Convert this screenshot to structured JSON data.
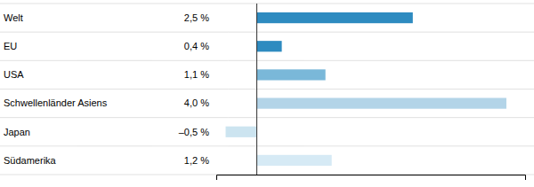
{
  "chart_data": {
    "type": "bar",
    "orientation": "horizontal",
    "categories": [
      "Welt",
      "EU",
      "USA",
      "Schwellenländer Asiens",
      "Japan",
      "Südamerika"
    ],
    "values": [
      2.5,
      0.4,
      1.1,
      4.0,
      -0.5,
      1.2
    ],
    "value_labels": [
      "2,5 %",
      "0,4 %",
      "1,1 %",
      "4,0 %",
      "–0,5 %",
      "1,2 %"
    ],
    "data_labels": true,
    "colors": [
      "#2e8bc0",
      "#2e8bc0",
      "#7ab8d9",
      "#b3d4e8",
      "#cce4f0",
      "#d6eaf5"
    ],
    "xlim": [
      -0.65,
      4.3
    ],
    "xticks": [],
    "tick_labels": "y",
    "grid": false
  }
}
